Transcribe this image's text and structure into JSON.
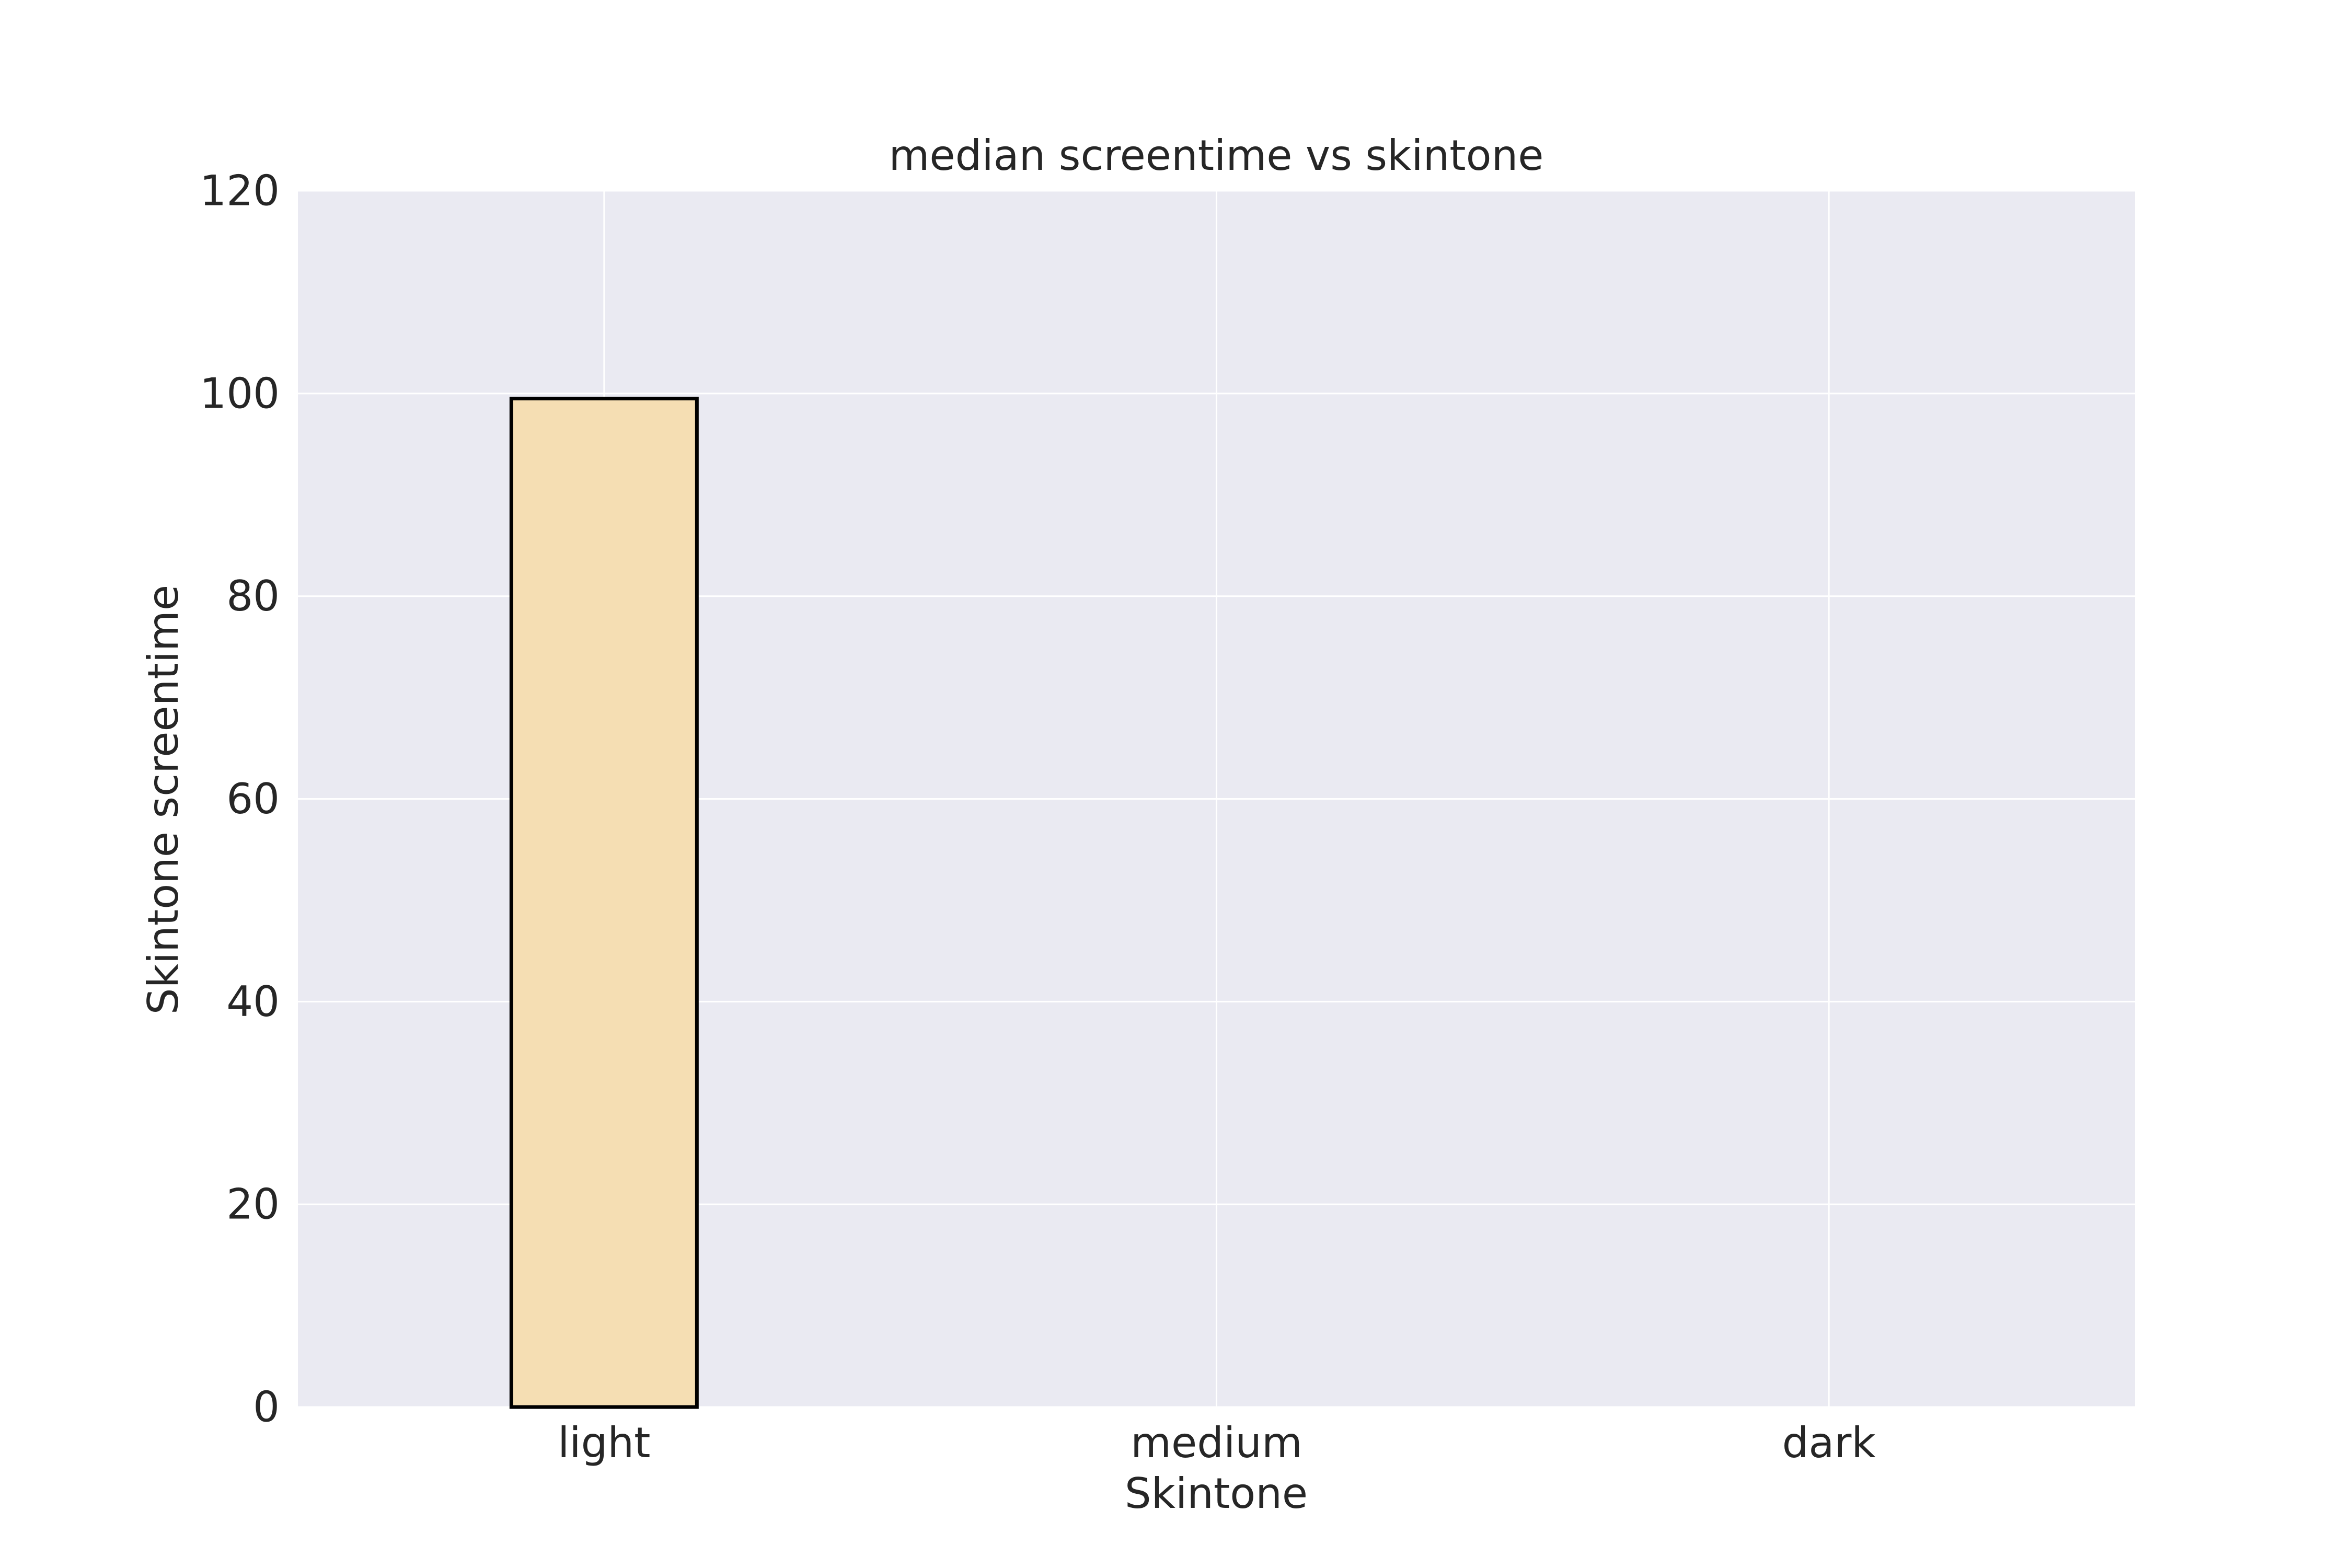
{
  "chart_data": {
    "type": "bar",
    "title": "median screentime vs skintone",
    "xlabel": "Skintone",
    "ylabel": "Skintone screentime",
    "categories": [
      "light",
      "medium",
      "dark"
    ],
    "values": [
      99.5,
      0,
      0
    ],
    "ylim": [
      0,
      120
    ],
    "yticks": [
      "0",
      "20",
      "40",
      "60",
      "80",
      "100",
      "120"
    ],
    "grid": true,
    "legend": "none",
    "colors": {
      "bar_fill": "#f5deb3",
      "bar_edge": "#000000",
      "plot_background": "#eaeaf2",
      "grid": "#ffffff",
      "text": "#262626"
    }
  }
}
